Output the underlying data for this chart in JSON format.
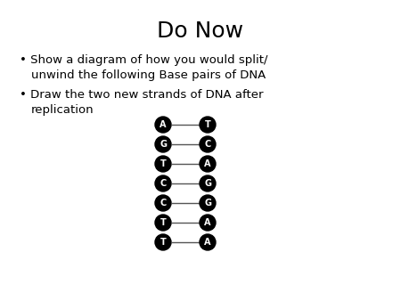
{
  "title": "Do Now",
  "bullet1_line1": "Show a diagram of how you would split/",
  "bullet1_line2": "unwind the following Base pairs of DNA",
  "bullet2_line1": "Draw the two new strands of DNA after",
  "bullet2_line2": "replication",
  "base_pairs": [
    [
      "A",
      "T"
    ],
    [
      "G",
      "C"
    ],
    [
      "T",
      "A"
    ],
    [
      "C",
      "G"
    ],
    [
      "C",
      "G"
    ],
    [
      "T",
      "A"
    ],
    [
      "T",
      "A"
    ]
  ],
  "circle_color": "#000000",
  "text_color": "#ffffff",
  "background_color": "#ffffff",
  "title_fontsize": 18,
  "body_fontsize": 9.5,
  "dash_color": "#555555"
}
